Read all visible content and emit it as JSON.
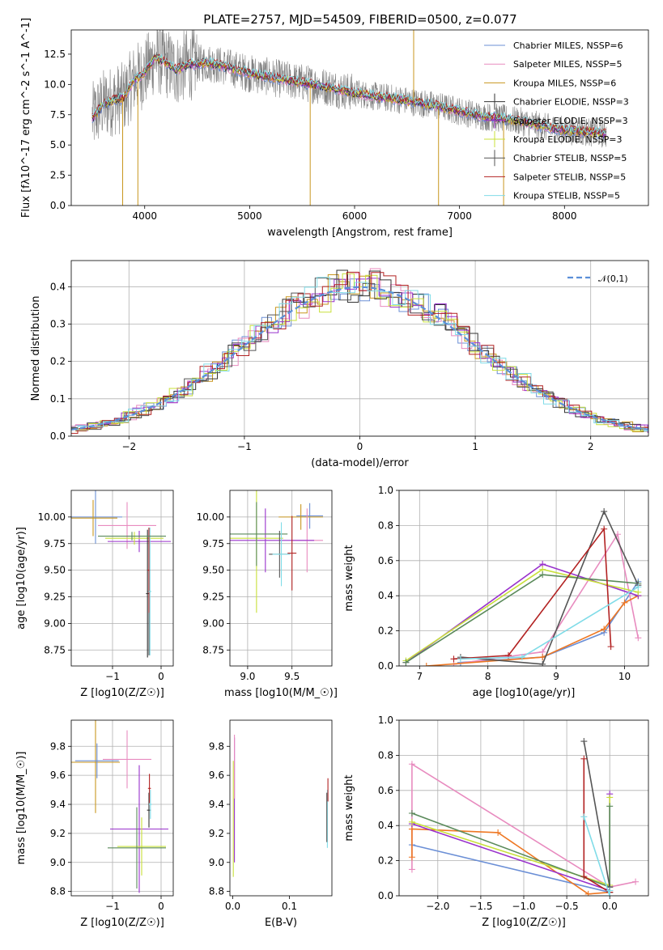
{
  "figure_title": "PLATE=2757, MJD=54509, FIBERID=0500, z=0.077",
  "colors": {
    "grid": "#b0b0b0",
    "data": "#808080",
    "chab_miles": "#6b8fd6",
    "salp_miles": "#e88bbf",
    "krou_miles": "#c8961e",
    "chab_elodie": "#333333",
    "salp_elodie": "#9932cc",
    "krou_elodie": "#c8e03a",
    "chab_stelib": "#555555",
    "salp_stelib": "#b22222",
    "krou_stelib": "#80dce8",
    "orange": "#ee7722",
    "green": "#5a8a5a",
    "normal": "#5b8fd8"
  },
  "chart_data": [
    {
      "id": "spectrum",
      "type": "line",
      "xlabel": "wavelength [Angstrom, rest frame]",
      "ylabel": "Flux [f$_\\lambda$10$^{-17}$ erg cm$^{-2}$ s$^{-1}$ A$^{-1}$]",
      "xlim": [
        3300,
        8800
      ],
      "ylim": [
        0,
        14.5
      ],
      "xticks": [
        4000,
        5000,
        6000,
        7000,
        8000
      ],
      "yticks": [
        0.0,
        2.5,
        5.0,
        7.5,
        10.0,
        12.5
      ],
      "legend_position": "top-right",
      "grid": false,
      "series": [
        {
          "name": "Chabrier MILES, N$_{SSP}$=6",
          "key": "chab_miles"
        },
        {
          "name": "Salpeter MILES, N$_{SSP}$=5",
          "key": "salp_miles"
        },
        {
          "name": "Kroupa MILES, N$_{SSP}$=6",
          "key": "krou_miles"
        },
        {
          "name": "Chabrier ELODIE, N$_{SSP}$=3",
          "key": "chab_elodie"
        },
        {
          "name": "Salpeter ELODIE, N$_{SSP}$=3",
          "key": "salp_elodie"
        },
        {
          "name": "Kroupa ELODIE, N$_{SSP}$=3",
          "key": "krou_elodie"
        },
        {
          "name": "Chabrier STELIB, N$_{SSP}$=5",
          "key": "chab_stelib"
        },
        {
          "name": "Salpeter STELIB, N$_{SSP}$=5",
          "key": "salp_stelib"
        },
        {
          "name": "Kroupa STELIB, N$_{SSP}$=5",
          "key": "krou_stelib"
        }
      ],
      "continuum": [
        [
          3500,
          7.2
        ],
        [
          3600,
          8.3
        ],
        [
          3700,
          8.7
        ],
        [
          3800,
          8.9
        ],
        [
          3900,
          10.4
        ],
        [
          4000,
          11.0
        ],
        [
          4100,
          12.2
        ],
        [
          4200,
          11.8
        ],
        [
          4300,
          11.2
        ],
        [
          4400,
          11.6
        ],
        [
          4600,
          11.8
        ],
        [
          4800,
          11.4
        ],
        [
          5000,
          10.9
        ],
        [
          5200,
          10.6
        ],
        [
          5400,
          10.3
        ],
        [
          5600,
          10.0
        ],
        [
          5800,
          9.7
        ],
        [
          6000,
          9.3
        ],
        [
          6200,
          9.0
        ],
        [
          6400,
          8.8
        ],
        [
          6600,
          8.5
        ],
        [
          6800,
          8.2
        ],
        [
          7000,
          7.8
        ],
        [
          7200,
          7.4
        ],
        [
          7400,
          7.2
        ],
        [
          7600,
          6.9
        ],
        [
          7800,
          6.5
        ],
        [
          8000,
          6.2
        ],
        [
          8200,
          6.1
        ],
        [
          8400,
          5.9
        ]
      ],
      "features": [
        {
          "x": 3790,
          "y": 0.0
        },
        {
          "x": 3935,
          "y": 0.0
        },
        {
          "x": 5577,
          "y": 0.0
        },
        {
          "x": 6563,
          "y": 14.5
        },
        {
          "x": 6800,
          "y": 0.0
        },
        {
          "x": 7420,
          "y": 0.0
        }
      ]
    },
    {
      "id": "residuals",
      "type": "line",
      "xlabel": "(data-model)/error",
      "ylabel": "Normed distribution",
      "xlim": [
        -2.5,
        2.5
      ],
      "ylim": [
        0,
        0.47
      ],
      "xticks": [
        -2,
        -1,
        0,
        1,
        2
      ],
      "yticks": [
        0.0,
        0.1,
        0.2,
        0.3,
        0.4
      ],
      "grid": true,
      "legend_position": "top-right",
      "legend": "$\\mathcal{N}(0,1)$",
      "gaussian_mean": 0,
      "gaussian_sigma": 1,
      "hist_edges_from": -2.5,
      "hist_bin": 0.1
    },
    {
      "id": "z_vs_age",
      "type": "scatter",
      "xlabel": "Z [log$_{10}$(Z/Z$_\\odot$)]",
      "ylabel": "age  [log$_{10}$($age/yr$)]",
      "xlim": [
        -1.85,
        0.25
      ],
      "ylim": [
        8.6,
        10.25
      ],
      "xticks": [
        -1,
        0
      ],
      "yticks": [
        8.75,
        9.0,
        9.25,
        9.5,
        9.75,
        10.0
      ],
      "grid": true,
      "points": [
        {
          "key": "chab_miles",
          "x": -1.35,
          "y": 10.0,
          "xerr": 0.55,
          "yerr": 0.25
        },
        {
          "key": "salp_miles",
          "x": -0.7,
          "y": 9.92,
          "xerr": 0.6,
          "yerr": 0.22
        },
        {
          "key": "krou_miles",
          "x": -1.4,
          "y": 9.99,
          "xerr": 0.5,
          "yerr": 0.17
        },
        {
          "key": "salp_elodie",
          "x": -0.45,
          "y": 9.77,
          "xerr": 0.65,
          "yerr": 0.1
        },
        {
          "key": "krou_elodie",
          "x": -0.55,
          "y": 9.8,
          "xerr": 0.6,
          "yerr": 0.06
        },
        {
          "key": "chab_elodie",
          "x": -0.28,
          "y": 9.28,
          "xerr": 0.03,
          "yerr": 0.6
        },
        {
          "key": "chab_stelib",
          "x": -0.25,
          "y": 9.3,
          "xerr": 0.03,
          "yerr": 0.6
        },
        {
          "key": "salp_stelib",
          "x": -0.25,
          "y": 9.5,
          "xerr": 0.03,
          "yerr": 0.4
        },
        {
          "key": "krou_stelib",
          "x": -0.23,
          "y": 9.3,
          "xerr": 0.03,
          "yerr": 0.6
        },
        {
          "key": "green",
          "x": -0.6,
          "y": 9.82,
          "xerr": 0.7,
          "yerr": 0.04
        }
      ]
    },
    {
      "id": "mass_vs_age",
      "type": "scatter",
      "xlabel": "mass [log$_{10}$($M/M_\\odot$)]",
      "ylabel": "",
      "xlim": [
        8.8,
        9.95
      ],
      "ylim": [
        8.6,
        10.25
      ],
      "xticks": [
        9.0,
        9.5
      ],
      "yticks": [
        8.75,
        9.0,
        9.25,
        9.5,
        9.75,
        10.0
      ],
      "grid": true,
      "points": [
        {
          "key": "chab_miles",
          "x": 9.7,
          "y": 10.01,
          "xerr": 0.15,
          "yerr": 0.12
        },
        {
          "key": "krou_miles",
          "x": 9.6,
          "y": 10.0,
          "xerr": 0.25,
          "yerr": 0.12
        },
        {
          "key": "salp_miles",
          "x": 9.67,
          "y": 9.78,
          "xerr": 0.18,
          "yerr": 0.3
        },
        {
          "key": "salp_elodie",
          "x": 9.2,
          "y": 9.78,
          "xerr": 0.55,
          "yerr": 0.3
        },
        {
          "key": "krou_elodie",
          "x": 9.1,
          "y": 9.8,
          "xerr": 0.3,
          "yerr": 0.7
        },
        {
          "key": "green",
          "x": 9.1,
          "y": 9.84,
          "xerr": 0.35,
          "yerr": 0.3
        },
        {
          "key": "chab_stelib",
          "x": 9.36,
          "y": 9.65,
          "xerr": 0.12,
          "yerr": 0.22
        },
        {
          "key": "krou_stelib",
          "x": 9.38,
          "y": 9.65,
          "xerr": 0.1,
          "yerr": 0.3
        },
        {
          "key": "salp_stelib",
          "x": 9.5,
          "y": 9.66,
          "xerr": 0.05,
          "yerr": 0.35
        }
      ]
    },
    {
      "id": "age_vs_weight",
      "type": "line",
      "xlabel": "age  [log$_{10}$($age/yr$)]",
      "ylabel": "mass weight",
      "xlim": [
        6.7,
        10.35
      ],
      "ylim": [
        0,
        1.0
      ],
      "xticks": [
        7,
        8,
        9,
        10
      ],
      "yticks": [
        0.0,
        0.2,
        0.4,
        0.6,
        0.8,
        1.0
      ],
      "grid": true,
      "series": [
        {
          "key": "chab_miles",
          "points": [
            [
              7.6,
              0.02
            ],
            [
              8.8,
              0.05
            ],
            [
              9.7,
              0.19
            ],
            [
              10.2,
              0.48
            ]
          ]
        },
        {
          "key": "salp_miles",
          "points": [
            [
              7.5,
              0.01
            ],
            [
              8.8,
              0.08
            ],
            [
              9.9,
              0.75
            ],
            [
              10.2,
              0.16
            ]
          ]
        },
        {
          "key": "orange",
          "points": [
            [
              7.1,
              0.0
            ],
            [
              8.8,
              0.05
            ],
            [
              9.7,
              0.21
            ],
            [
              10.0,
              0.36
            ],
            [
              10.2,
              0.4
            ]
          ]
        },
        {
          "key": "salp_elodie",
          "points": [
            [
              6.8,
              0.02
            ],
            [
              8.8,
              0.58
            ],
            [
              10.2,
              0.4
            ]
          ]
        },
        {
          "key": "krou_elodie",
          "points": [
            [
              6.8,
              0.03
            ],
            [
              8.8,
              0.55
            ],
            [
              10.2,
              0.42
            ]
          ]
        },
        {
          "key": "green",
          "points": [
            [
              6.8,
              0.02
            ],
            [
              8.8,
              0.52
            ],
            [
              10.2,
              0.47
            ]
          ]
        },
        {
          "key": "chab_stelib",
          "points": [
            [
              7.6,
              0.05
            ],
            [
              8.8,
              0.01
            ],
            [
              9.7,
              0.88
            ],
            [
              10.2,
              0.46
            ]
          ]
        },
        {
          "key": "salp_stelib",
          "points": [
            [
              7.5,
              0.04
            ],
            [
              8.3,
              0.06
            ],
            [
              9.7,
              0.78
            ],
            [
              9.8,
              0.11
            ]
          ]
        },
        {
          "key": "krou_stelib",
          "points": [
            [
              7.6,
              0.04
            ],
            [
              8.5,
              0.05
            ],
            [
              10.2,
              0.45
            ]
          ]
        }
      ]
    },
    {
      "id": "z_vs_mass",
      "type": "scatter",
      "xlabel": "Z [log$_{10}$(Z/Z$_\\odot$)]",
      "ylabel": "mass [log$_{10}$($M/M_\\odot$)]",
      "xlim": [
        -1.85,
        0.25
      ],
      "ylim": [
        8.77,
        9.98
      ],
      "xticks": [
        -1,
        0
      ],
      "yticks": [
        8.8,
        9.0,
        9.2,
        9.4,
        9.6,
        9.8
      ],
      "grid": true,
      "points": [
        {
          "key": "krou_miles",
          "x": -1.35,
          "y": 9.69,
          "xerr": 0.5,
          "yerr": 0.35
        },
        {
          "key": "chab_miles",
          "x": -1.32,
          "y": 9.7,
          "xerr": 0.45,
          "yerr": 0.12
        },
        {
          "key": "salp_miles",
          "x": -0.7,
          "y": 9.71,
          "xerr": 0.5,
          "yerr": 0.2
        },
        {
          "key": "salp_elodie",
          "x": -0.45,
          "y": 9.23,
          "xerr": 0.6,
          "yerr": 0.44
        },
        {
          "key": "krou_elodie",
          "x": -0.4,
          "y": 9.11,
          "xerr": 0.5,
          "yerr": 0.2
        },
        {
          "key": "green",
          "x": -0.5,
          "y": 9.1,
          "xerr": 0.6,
          "yerr": 0.28
        },
        {
          "key": "chab_elodie",
          "x": -0.25,
          "y": 9.36,
          "xerr": 0.04,
          "yerr": 0.12
        },
        {
          "key": "salp_stelib",
          "x": -0.24,
          "y": 9.51,
          "xerr": 0.03,
          "yerr": 0.1
        },
        {
          "key": "krou_stelib",
          "x": -0.22,
          "y": 9.4,
          "xerr": 0.03,
          "yerr": 0.1
        }
      ]
    },
    {
      "id": "ebv_vs_mass",
      "type": "scatter",
      "xlabel": "E(B-V)",
      "ylabel": "",
      "xlim": [
        -0.005,
        0.175
      ],
      "ylim": [
        8.77,
        9.98
      ],
      "xticks": [
        0.0,
        0.1
      ],
      "yticks": [
        8.8,
        9.0,
        9.2,
        9.4,
        9.6,
        9.8
      ],
      "grid": false,
      "points": [
        {
          "key": "salp_elodie",
          "x": 0.003,
          "y": 9.43,
          "xerr": 0.0,
          "yerr": 0.43
        },
        {
          "key": "salp_miles",
          "x": 0.003,
          "y": 9.66,
          "xerr": 0.0,
          "yerr": 0.22
        },
        {
          "key": "krou_elodie",
          "x": 0.001,
          "y": 9.3,
          "xerr": 0.0,
          "yerr": 0.4
        },
        {
          "key": "krou_stelib",
          "x": 0.167,
          "y": 9.3,
          "xerr": 0.0,
          "yerr": 0.2
        },
        {
          "key": "chab_stelib",
          "x": 0.166,
          "y": 9.31,
          "xerr": 0.0,
          "yerr": 0.17
        },
        {
          "key": "salp_stelib",
          "x": 0.168,
          "y": 9.5,
          "xerr": 0.0,
          "yerr": 0.08
        }
      ]
    },
    {
      "id": "z_vs_weight",
      "type": "line",
      "xlabel": "Z [log$_{10}$(Z/Z$_\\odot$)]",
      "ylabel": "mass weight",
      "xlim": [
        -2.45,
        0.45
      ],
      "ylim": [
        0,
        1.0
      ],
      "xticks": [
        -2.0,
        -1.5,
        -1.0,
        -0.5,
        0.0
      ],
      "yticks": [
        0.0,
        0.2,
        0.4,
        0.6,
        0.8,
        1.0
      ],
      "grid": true,
      "series": [
        {
          "key": "chab_miles",
          "points": [
            [
              -2.3,
              0.29
            ],
            [
              0.0,
              0.02
            ]
          ]
        },
        {
          "key": "salp_miles",
          "points": [
            [
              -2.3,
              0.15
            ],
            [
              -2.3,
              0.75
            ],
            [
              0.0,
              0.05
            ],
            [
              0.3,
              0.08
            ]
          ]
        },
        {
          "key": "orange",
          "points": [
            [
              -2.3,
              0.22
            ],
            [
              -2.3,
              0.38
            ],
            [
              -1.3,
              0.36
            ],
            [
              -0.25,
              0.01
            ],
            [
              0.0,
              0.02
            ]
          ]
        },
        {
          "key": "salp_elodie",
          "points": [
            [
              -2.3,
              0.41
            ],
            [
              0.0,
              0.03
            ],
            [
              0.0,
              0.58
            ]
          ]
        },
        {
          "key": "krou_elodie",
          "points": [
            [
              -2.3,
              0.42
            ],
            [
              0.0,
              0.06
            ],
            [
              0.0,
              0.56
            ]
          ]
        },
        {
          "key": "green",
          "points": [
            [
              -2.3,
              0.47
            ],
            [
              0.0,
              0.05
            ],
            [
              0.0,
              0.51
            ]
          ]
        },
        {
          "key": "chab_stelib",
          "points": [
            [
              -0.3,
              0.88
            ],
            [
              0.0,
              0.05
            ],
            [
              0.0,
              0.02
            ]
          ]
        },
        {
          "key": "salp_stelib",
          "points": [
            [
              -0.3,
              0.78
            ],
            [
              -0.3,
              0.11
            ],
            [
              0.0,
              0.02
            ]
          ]
        },
        {
          "key": "krou_stelib",
          "points": [
            [
              -0.3,
              0.45
            ],
            [
              0.0,
              0.0
            ],
            [
              0.0,
              0.03
            ]
          ]
        }
      ]
    }
  ]
}
